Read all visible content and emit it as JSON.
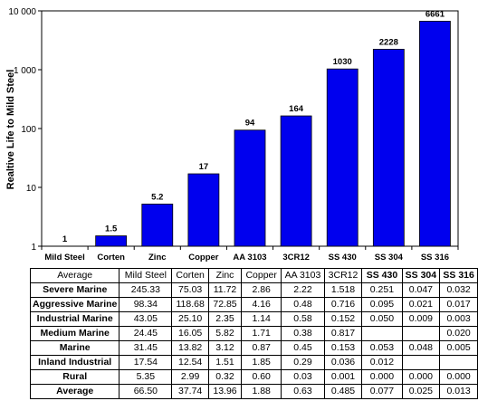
{
  "chart_data": {
    "type": "bar",
    "ylabel": "Realtive Life to Mild Steel",
    "yscale": "log",
    "ylim": [
      1,
      10000
    ],
    "yticks": [
      "1",
      "10",
      "100",
      "1 000",
      "10 000"
    ],
    "categories": [
      "Mild Steel",
      "Corten",
      "Zinc",
      "Copper",
      "AA 3103",
      "3CR12",
      "SS 430",
      "SS 304",
      "SS 316"
    ],
    "values": [
      1,
      1.5,
      5.2,
      17,
      94,
      164,
      1030,
      2228,
      6661
    ],
    "data_labels": [
      "1",
      "1.5",
      "5.2",
      "17",
      "94",
      "164",
      "1030",
      "2228",
      "6661"
    ],
    "bar_color": "#0000ee",
    "grid": false
  },
  "table": {
    "columns": [
      "Average",
      "Mild Steel",
      "Corten",
      "Zinc",
      "Copper",
      "AA 3103",
      "3CR12",
      "SS 430",
      "SS 304",
      "SS 316"
    ],
    "rows": [
      {
        "label": "Severe Marine",
        "cells": [
          "245.33",
          "75.03",
          "11.72",
          "2.86",
          "2.22",
          "1.518",
          "0.251",
          "0.047",
          "0.032"
        ]
      },
      {
        "label": "Aggressive Marine",
        "cells": [
          "98.34",
          "118.68",
          "72.85",
          "4.16",
          "0.48",
          "0.716",
          "0.095",
          "0.021",
          "0.017"
        ]
      },
      {
        "label": "Industrial Marine",
        "cells": [
          "43.05",
          "25.10",
          "2.35",
          "1.14",
          "0.58",
          "0.152",
          "0.050",
          "0.009",
          "0.003"
        ]
      },
      {
        "label": "Medium Marine",
        "cells": [
          "24.45",
          "16.05",
          "5.82",
          "1.71",
          "0.38",
          "0.817",
          "",
          "",
          "0.020"
        ]
      },
      {
        "label": "Marine",
        "cells": [
          "31.45",
          "13.82",
          "3.12",
          "0.87",
          "0.45",
          "0.153",
          "0.053",
          "0.048",
          "0.005"
        ]
      },
      {
        "label": "Inland Industrial",
        "cells": [
          "17.54",
          "12.54",
          "1.51",
          "1.85",
          "0.29",
          "0.036",
          "0.012",
          "",
          ""
        ]
      },
      {
        "label": "Rural",
        "cells": [
          "5.35",
          "2.99",
          "0.32",
          "0.60",
          "0.03",
          "0.001",
          "0.000",
          "0.000",
          "0.000"
        ]
      },
      {
        "label": "Average",
        "cells": [
          "66.50",
          "37.74",
          "13.96",
          "1.88",
          "0.63",
          "0.485",
          "0.077",
          "0.025",
          "0.013"
        ]
      }
    ]
  }
}
